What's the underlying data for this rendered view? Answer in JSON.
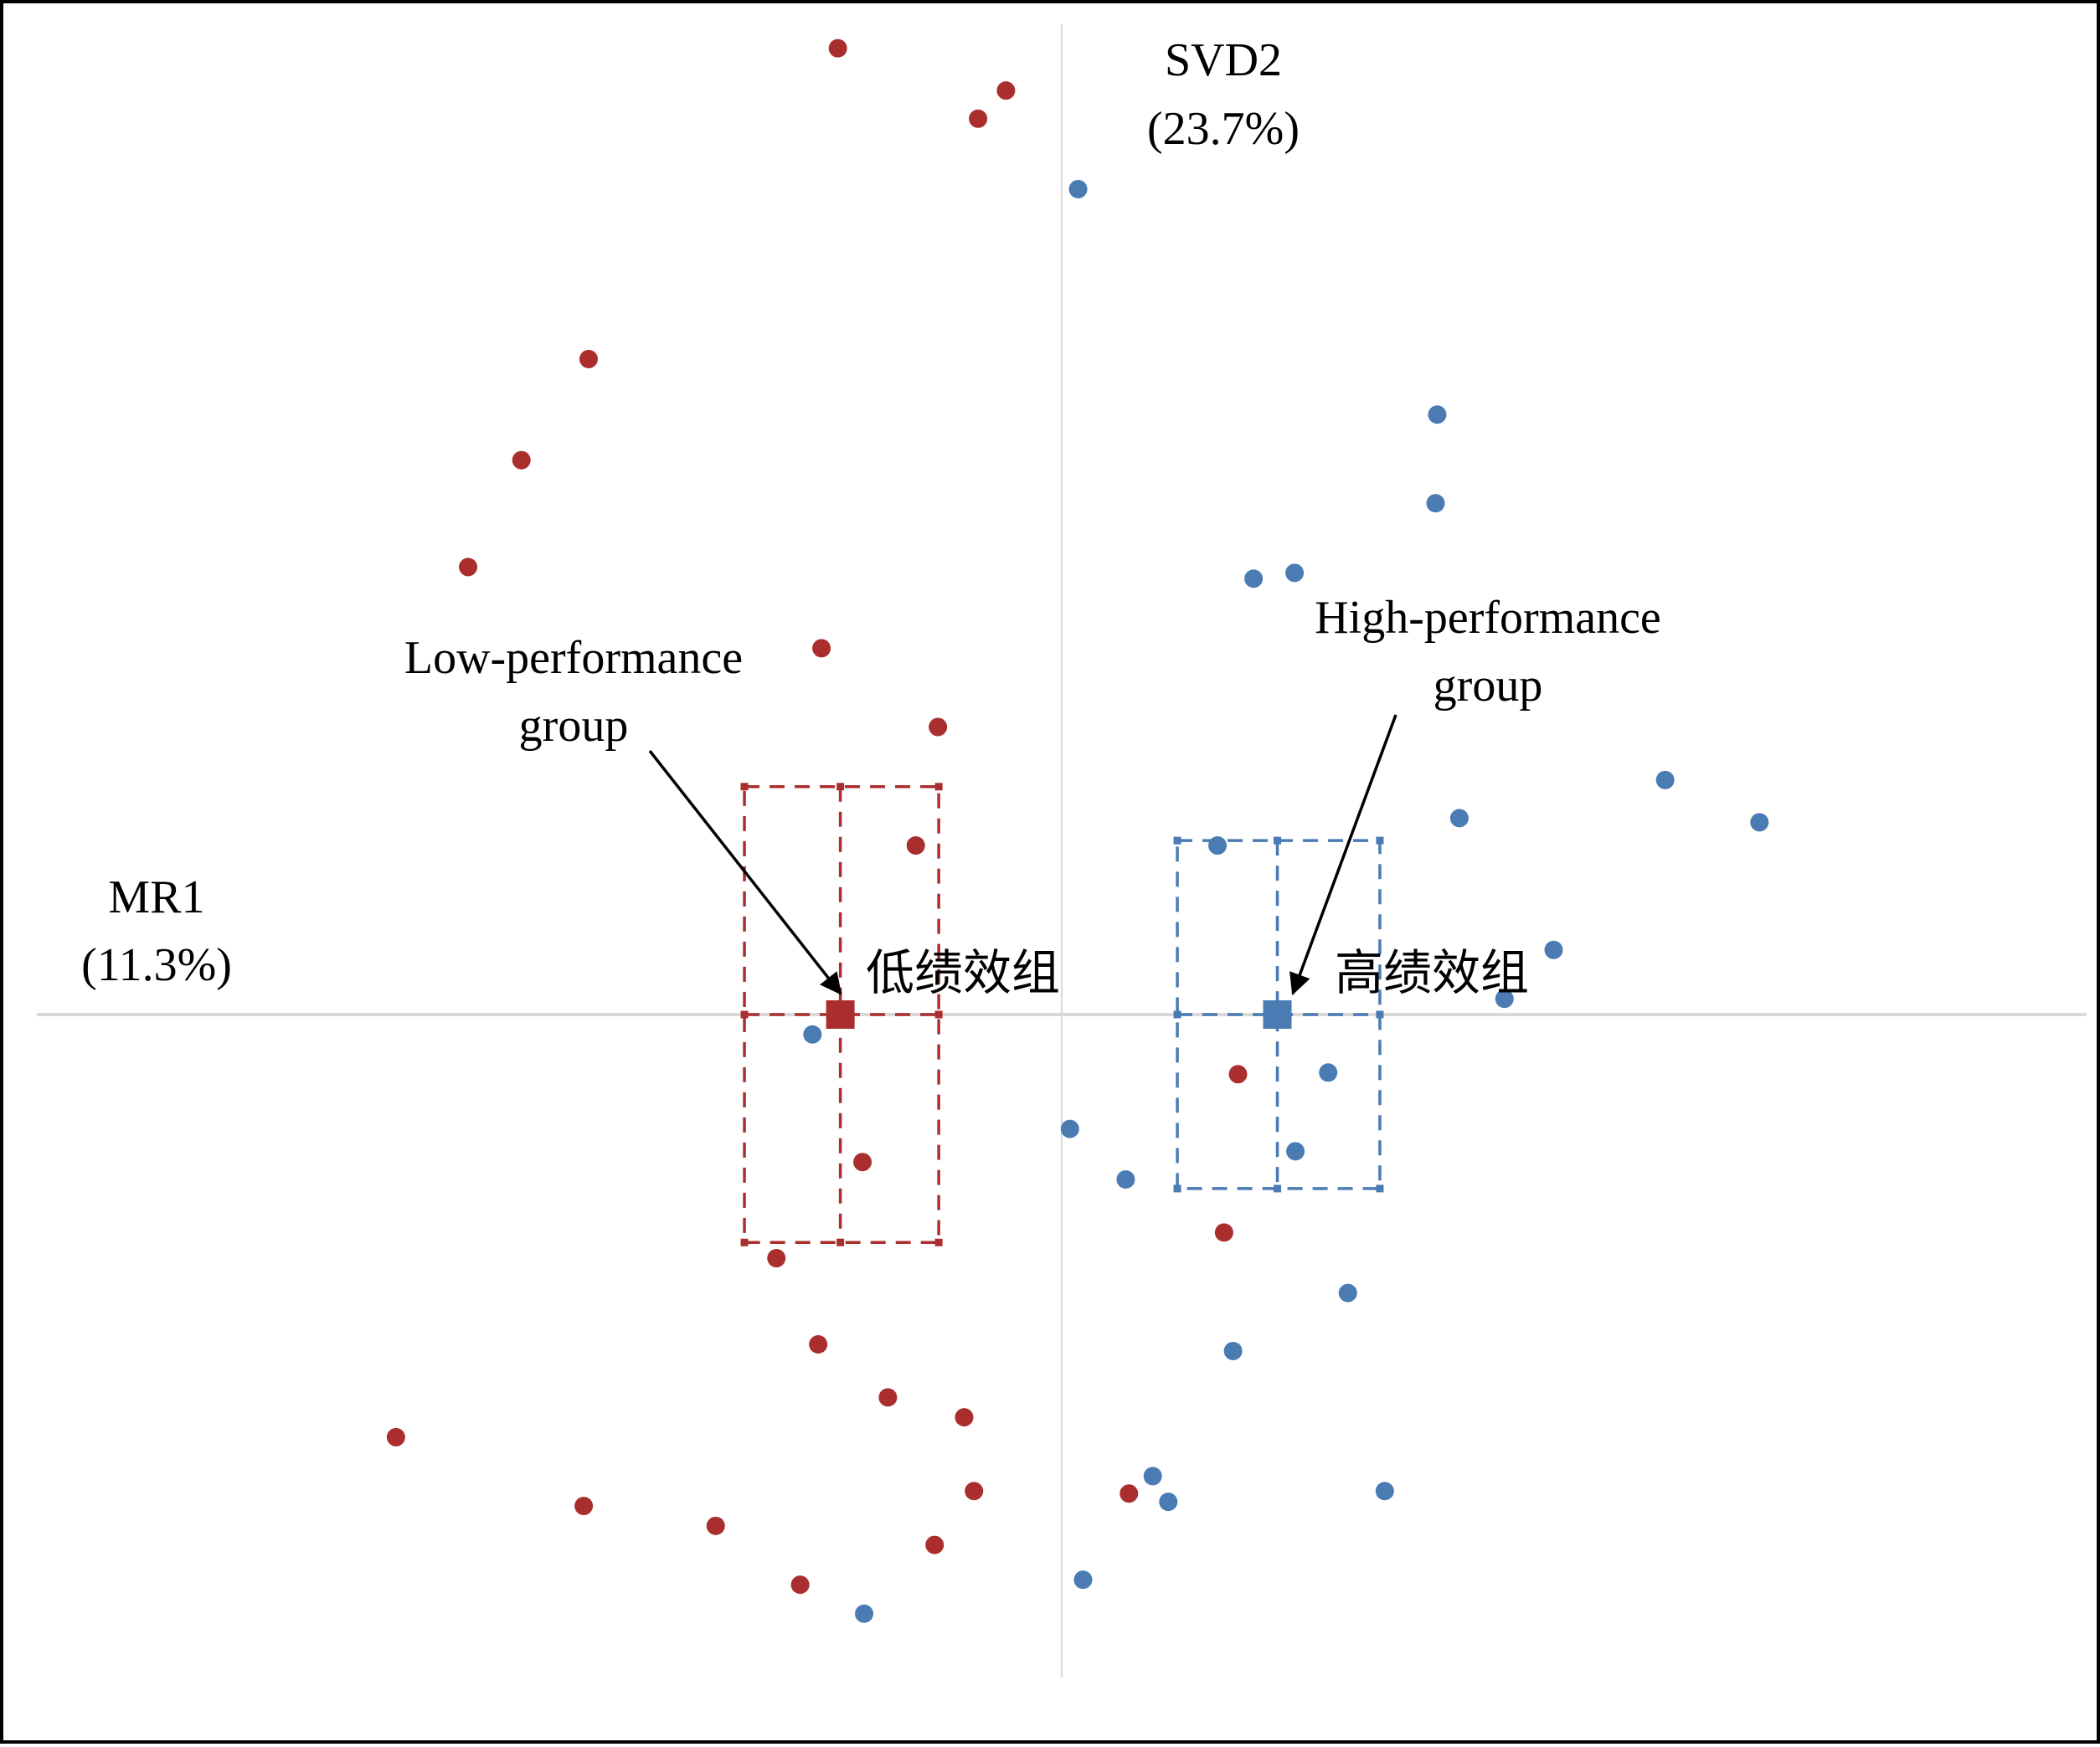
{
  "chart_data": {
    "type": "scatter",
    "title": "",
    "xlabel": "MR1",
    "xlabel_pct": "(11.3%)",
    "ylabel": "SVD2",
    "ylabel_pct": "(23.7%)",
    "xlim": [
      -12.5,
      12.5
    ],
    "ylim": [
      -8,
      12
    ],
    "grid": false,
    "axes": "center-crosshair",
    "colors": {
      "low": "#ab2e2e",
      "high": "#4a7bb3",
      "axis": "#d9d9d9"
    },
    "series": [
      {
        "key": "low",
        "color": "#ab2e2e",
        "points": [
          [
            -2.73,
            11.66
          ],
          [
            -0.68,
            11.15
          ],
          [
            -1.02,
            10.81
          ],
          [
            -5.77,
            7.91
          ],
          [
            -6.59,
            6.69
          ],
          [
            -7.24,
            5.4
          ],
          [
            -2.93,
            4.42
          ],
          [
            -1.51,
            3.47
          ],
          [
            -1.78,
            2.04
          ],
          [
            -2.43,
            -1.78
          ],
          [
            2.15,
            -0.72
          ],
          [
            1.98,
            -2.63
          ],
          [
            -3.48,
            -2.94
          ],
          [
            -2.97,
            -3.98
          ],
          [
            -2.12,
            -4.62
          ],
          [
            -1.19,
            -4.86
          ],
          [
            -8.12,
            -5.1
          ],
          [
            -5.83,
            -5.93
          ],
          [
            -4.22,
            -6.17
          ],
          [
            -1.07,
            -5.75
          ],
          [
            0.82,
            -5.78
          ],
          [
            -1.55,
            -6.4
          ],
          [
            -3.19,
            -6.88
          ]
        ]
      },
      {
        "key": "high",
        "color": "#4a7bb3",
        "points": [
          [
            0.2,
            9.96
          ],
          [
            4.58,
            7.24
          ],
          [
            4.56,
            6.17
          ],
          [
            2.84,
            5.33
          ],
          [
            2.34,
            5.26
          ],
          [
            4.85,
            2.37
          ],
          [
            7.36,
            2.83
          ],
          [
            8.51,
            2.32
          ],
          [
            1.9,
            2.04
          ],
          [
            6.0,
            0.78
          ],
          [
            5.4,
            0.19
          ],
          [
            -3.04,
            -0.24
          ],
          [
            3.25,
            -0.7
          ],
          [
            0.1,
            -1.38
          ],
          [
            2.85,
            -1.65
          ],
          [
            0.78,
            -1.99
          ],
          [
            3.49,
            -3.36
          ],
          [
            2.09,
            -4.06
          ],
          [
            1.11,
            -5.57
          ],
          [
            1.3,
            -5.88
          ],
          [
            3.94,
            -5.75
          ],
          [
            0.26,
            -6.82
          ],
          [
            -2.41,
            -7.23
          ]
        ]
      }
    ],
    "centroids": [
      {
        "key": "low",
        "x": -2.7,
        "y": 0.0,
        "x_range": [
          -3.87,
          -1.5
        ],
        "y_range": [
          -2.75,
          2.75
        ],
        "label": "低绩效组",
        "callout": [
          "Low-performance",
          "group"
        ]
      },
      {
        "key": "high",
        "x": 2.63,
        "y": 0.0,
        "x_range": [
          1.41,
          3.88
        ],
        "y_range": [
          -2.1,
          2.1
        ],
        "label": "高绩效组",
        "callout": [
          "High-performance",
          "group"
        ]
      }
    ]
  }
}
